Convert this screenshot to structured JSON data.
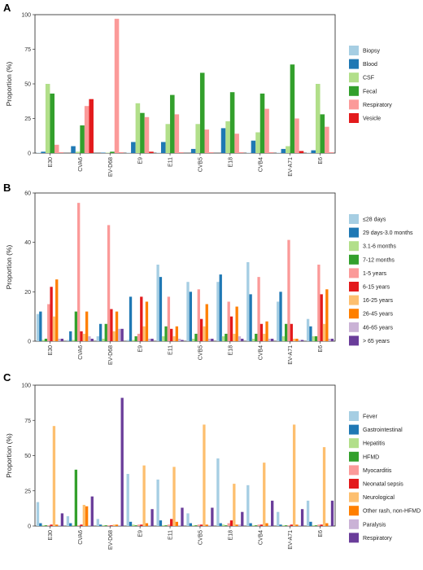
{
  "chart_data": [
    {
      "panel": "A",
      "type": "bar",
      "ylabel": "Proportion (%)",
      "ylim": [
        0,
        100
      ],
      "yticks": [
        0,
        25,
        50,
        75,
        100
      ],
      "categories": [
        "E30",
        "CVA6",
        "EV-D68",
        "E9",
        "E11",
        "CVB5",
        "E18",
        "CVB4",
        "EV-A71",
        "E6"
      ],
      "series": [
        {
          "name": "Biopsy",
          "color": "#a6cee3",
          "values": [
            0.3,
            0,
            0,
            0.3,
            0.3,
            0,
            0,
            0.3,
            0.3,
            0.3
          ]
        },
        {
          "name": "Blood",
          "color": "#1f78b4",
          "values": [
            1,
            5,
            0.3,
            8,
            8,
            3,
            18,
            9,
            3,
            2
          ]
        },
        {
          "name": "CSF",
          "color": "#b2df8a",
          "values": [
            50,
            1,
            0.3,
            36,
            21,
            21,
            23,
            15,
            5,
            50
          ]
        },
        {
          "name": "Fecal",
          "color": "#33a02c",
          "values": [
            43,
            20,
            1,
            29,
            42,
            58,
            44,
            43,
            64,
            28
          ]
        },
        {
          "name": "Respiratory",
          "color": "#fb9a99",
          "values": [
            6,
            34,
            97,
            26,
            28,
            17,
            14,
            32,
            25,
            19
          ]
        },
        {
          "name": "Vesicle",
          "color": "#e31a1c",
          "values": [
            0.3,
            39,
            0.3,
            1,
            0.3,
            0.3,
            0.3,
            0.3,
            1.5,
            0.3
          ]
        }
      ]
    },
    {
      "panel": "B",
      "type": "bar",
      "ylabel": "Proportion (%)",
      "ylim": [
        0,
        60
      ],
      "yticks": [
        0,
        20,
        40,
        60
      ],
      "categories": [
        "E30",
        "CVA6",
        "EV-D68",
        "E9",
        "E11",
        "CVB5",
        "E18",
        "CVB4",
        "EV-A71",
        "E6"
      ],
      "series": [
        {
          "name": "≤28 days",
          "color": "#a6cee3",
          "values": [
            11,
            0.5,
            2,
            0.5,
            31,
            24,
            24,
            32,
            16,
            9
          ]
        },
        {
          "name": "29 days-3.0 months",
          "color": "#1f78b4",
          "values": [
            12,
            4,
            7,
            18,
            26,
            20,
            27,
            19,
            20,
            6
          ]
        },
        {
          "name": "3.1-6 months",
          "color": "#b2df8a",
          "values": [
            0.5,
            0.5,
            1,
            0.5,
            2,
            1,
            2,
            1,
            2,
            2
          ]
        },
        {
          "name": "7-12 months",
          "color": "#33a02c",
          "values": [
            1,
            12,
            7,
            2,
            6,
            3,
            3,
            3,
            7,
            2
          ]
        },
        {
          "name": "1-5 years",
          "color": "#fb9a99",
          "values": [
            15,
            56,
            47,
            3,
            18,
            21,
            16,
            26,
            41,
            31
          ]
        },
        {
          "name": "6-15 years",
          "color": "#e31a1c",
          "values": [
            22,
            4,
            13,
            18,
            5,
            9,
            10,
            7,
            7,
            19
          ]
        },
        {
          "name": "16-25 years",
          "color": "#fdbf6f",
          "values": [
            10,
            3,
            4,
            6,
            2,
            6,
            3,
            3,
            1,
            7
          ]
        },
        {
          "name": "26-45 years",
          "color": "#ff7f00",
          "values": [
            25,
            12,
            12,
            16,
            6,
            15,
            14,
            8,
            1,
            21
          ]
        },
        {
          "name": "46-65 years",
          "color": "#cab2d6",
          "values": [
            1,
            2,
            5,
            1,
            1,
            1,
            2,
            1,
            0.5,
            1
          ]
        },
        {
          "name": "> 65 years",
          "color": "#6a3d9a",
          "values": [
            1,
            1,
            5,
            1,
            0.5,
            1,
            1,
            1,
            0.5,
            1
          ]
        }
      ]
    },
    {
      "panel": "C",
      "type": "bar",
      "ylabel": "Proportion (%)",
      "ylim": [
        0,
        100
      ],
      "yticks": [
        0,
        25,
        50,
        75,
        100
      ],
      "categories": [
        "E30",
        "CVA6",
        "EV-D68",
        "E9",
        "E11",
        "CVB5",
        "E18",
        "CVB4",
        "EV-A71",
        "E6"
      ],
      "series": [
        {
          "name": "Fever",
          "color": "#a6cee3",
          "values": [
            17,
            7,
            5,
            37,
            33,
            9,
            48,
            29,
            10,
            18
          ]
        },
        {
          "name": "Gastrointestinal",
          "color": "#1f78b4",
          "values": [
            2,
            2,
            1,
            3,
            4,
            2,
            2,
            2,
            1,
            3
          ]
        },
        {
          "name": "Hepatitis",
          "color": "#b2df8a",
          "values": [
            0.5,
            0.5,
            0.5,
            1,
            0.5,
            0.5,
            1,
            0.5,
            0.5,
            0.5
          ]
        },
        {
          "name": "HFMD",
          "color": "#33a02c",
          "values": [
            0.5,
            40,
            0.5,
            0.5,
            0.5,
            0.5,
            0.5,
            0.5,
            0.5,
            0.5
          ]
        },
        {
          "name": "Myocarditis",
          "color": "#fb9a99",
          "values": [
            0.5,
            0.5,
            0.5,
            1,
            1,
            1,
            2,
            1,
            0.5,
            1
          ]
        },
        {
          "name": "Neonatal sepsis",
          "color": "#e31a1c",
          "values": [
            1,
            1,
            0.5,
            1,
            5,
            1,
            4,
            1,
            1,
            1
          ]
        },
        {
          "name": "Neurological",
          "color": "#fdbf6f",
          "values": [
            71,
            15,
            1,
            43,
            42,
            72,
            30,
            45,
            72,
            56
          ]
        },
        {
          "name": "Other rash, non-HFMD",
          "color": "#ff7f00",
          "values": [
            1,
            14,
            1,
            2,
            3,
            1,
            1,
            2,
            1,
            2
          ]
        },
        {
          "name": "Paralysis",
          "color": "#cab2d6",
          "values": [
            0.5,
            0.5,
            0.5,
            0.5,
            0.5,
            0.5,
            1,
            0.5,
            0.5,
            0.5
          ]
        },
        {
          "name": "Respiratory",
          "color": "#6a3d9a",
          "values": [
            9,
            21,
            91,
            12,
            13,
            13,
            10,
            18,
            12,
            18
          ]
        }
      ]
    }
  ]
}
